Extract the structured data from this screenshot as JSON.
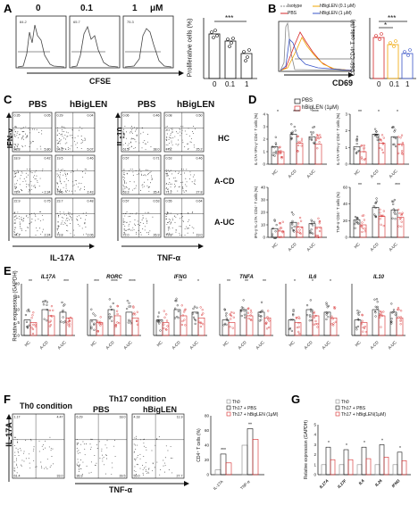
{
  "panels": {
    "A": {
      "label": "A",
      "titles": [
        "0",
        "0.1",
        "1",
        "μM"
      ],
      "hist_pcts": [
        "84.2",
        "65.7",
        "75.3"
      ],
      "xlabel": "CFSE",
      "ylabel": "Proliferative cells (%)",
      "yticks": [
        "0",
        "20",
        "40",
        "60",
        "80",
        "100"
      ],
      "xticks": [
        "0",
        "0.1",
        "1"
      ],
      "sig": "***"
    },
    "B": {
      "label": "B",
      "legend": [
        "Isotype",
        "hBigLEN (0.1 μM)",
        "PBS",
        "hBigLEN (1 μM)"
      ],
      "xlabel": "CD69",
      "ylabel": "CD69⁺CD4⁺ T cells (%)",
      "yticks": [
        "0",
        "20",
        "40",
        "60",
        "80",
        "100"
      ],
      "xticks": [
        "0",
        "0.1",
        "1"
      ],
      "sig_top": "***",
      "sig_mid": "*"
    },
    "C": {
      "label": "C",
      "left_heads": [
        "PBS",
        "hBigLEN"
      ],
      "right_heads": [
        "PBS",
        "hBigLEN"
      ],
      "left_ylabel": "IFN-γ",
      "left_xlabel": "IL-17A",
      "right_ylabel": "IL-10",
      "right_xlabel": "TNF-α",
      "rows": [
        "HC",
        "A-CD",
        "A-UC"
      ],
      "quads": [
        [
          "0.35",
          "0.05",
          "93.8",
          "5.80"
        ],
        [
          "0.29",
          "0.04",
          "94.6",
          "5.07"
        ],
        [
          "0.06",
          "0.46",
          "61.5",
          "38.0"
        ],
        [
          "0.08",
          "0.50",
          "74.2",
          "25.2"
        ],
        [
          "18.9",
          "0.42",
          "78.4",
          "2.34"
        ],
        [
          "19.5",
          "0.46",
          "79.6",
          "2.43"
        ],
        [
          "0.57",
          "0.71",
          "63.3",
          "35.4"
        ],
        [
          "0.53",
          "0.46",
          "71.2",
          "27.8"
        ],
        [
          "22.9",
          "0.75",
          "74.1",
          "2.24"
        ],
        [
          "23.7",
          "0.48",
          "73.8",
          "2.06"
        ],
        [
          "0.57",
          "0.53",
          "72.0",
          "26.9"
        ],
        [
          "0.55",
          "0.64",
          "79.8",
          "19.0"
        ]
      ]
    },
    "D": {
      "label": "D",
      "plots": [
        {
          "ylabel": "IL-17A⁺IFN-γ⁺CD4⁺ T cells (%)",
          "yticks": [
            "0",
            "1",
            "2",
            "3",
            "4"
          ],
          "sig": [
            "*",
            "****",
            "****"
          ]
        },
        {
          "ylabel": "IL-17A⁺IFN-γ⁻CD4⁺ T cells (%)",
          "yticks": [
            "0",
            "1",
            "2",
            "3"
          ],
          "sig": [
            "**",
            "*",
            "*"
          ]
        },
        {
          "ylabel": "IFN-γ⁺IL-17A⁻CD4⁺ T cells (%)",
          "yticks": [
            "0",
            "10",
            "20",
            "30",
            "40"
          ],
          "sig": []
        },
        {
          "ylabel": "TNF-α⁺CD4⁺ T cells (%)",
          "yticks": [
            "0",
            "20",
            "40",
            "60"
          ],
          "sig": [
            "**",
            "**",
            "***"
          ]
        }
      ],
      "xticks": [
        "HC",
        "A-CD",
        "A-UC"
      ],
      "legend": [
        "PBS",
        "hBigLEN (1μM)"
      ]
    },
    "E": {
      "label": "E",
      "ylabel": "Relative expression (GAPDH)",
      "genes": [
        "IL17A",
        "RORC",
        "IFNG",
        "TNFA",
        "IL6",
        "IL10"
      ],
      "xticks": [
        "HC",
        "A-CD",
        "A-UC"
      ],
      "yticks": [
        "0",
        "5",
        "10",
        "15",
        "20"
      ],
      "sigs": [
        [
          "**",
          "*",
          "***"
        ],
        [
          "***",
          "****",
          "****"
        ],
        [
          "",
          "**",
          "*"
        ],
        [
          "**",
          "**",
          "**"
        ],
        [
          "*",
          "*",
          "*"
        ],
        []
      ]
    },
    "F": {
      "label": "F",
      "th0": "Th0 condition",
      "th17": "Th17 condition",
      "pbs": "PBS",
      "hbig": "hBigLEN",
      "ylabel": "IL-17A",
      "xlabel": "TNF-α",
      "quads": [
        [
          "1.17",
          "4.47",
          "61.4",
          "33.0"
        ],
        [
          "6.29",
          "18.0",
          "36.9",
          "39.5"
        ],
        [
          "4.18",
          "11.9",
          "55.0",
          "27.7"
        ]
      ],
      "bar_ylabel": "CD4⁺ T cells (%)",
      "bar_yticks": [
        "0",
        "20",
        "40",
        "60",
        "80"
      ],
      "bar_xticks": [
        "IL-17A",
        "TNF-α"
      ],
      "legend": [
        "Th0",
        "Th17 + PBS",
        "Th17 + hBigLEN (1μM)"
      ],
      "sig": [
        "***",
        "**"
      ]
    },
    "G": {
      "label": "G",
      "ylabel": "Relative expression (GAPDH)",
      "yticks": [
        "0",
        "1",
        "2",
        "3",
        "4",
        "5"
      ],
      "genes": [
        "IL17A",
        "IL17F",
        "IL6",
        "IL26",
        "IFNG"
      ],
      "legend": [
        "Th0",
        "Th17 + PBS",
        "Th17 + hBigLEN(1μM)"
      ],
      "sig": [
        "*",
        "*",
        "*",
        "*",
        "*"
      ]
    }
  },
  "colors": {
    "black": "#111111",
    "red": "#d62728",
    "gray": "#888888",
    "orange": "#f0a500",
    "blue": "#3a55c8"
  }
}
